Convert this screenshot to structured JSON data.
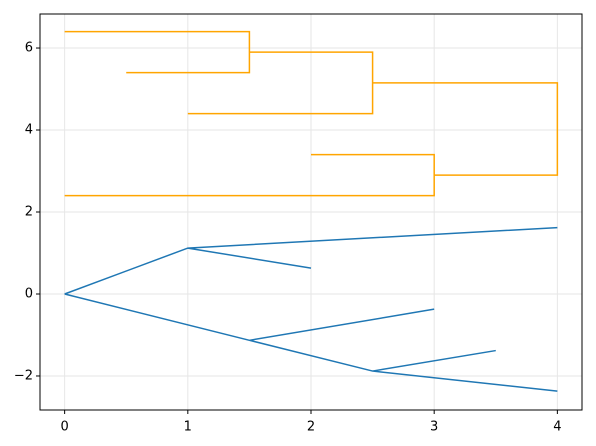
{
  "chart_data": {
    "type": "line",
    "xlim": [
      -0.2,
      4.2
    ],
    "ylim": [
      -2.83,
      6.83
    ],
    "xticks": [
      0,
      1,
      2,
      3,
      4
    ],
    "yticks": [
      {
        "value": -2,
        "label": "−2"
      },
      0,
      2,
      4,
      6
    ],
    "grid": true,
    "series": [
      {
        "color": "#ffa500",
        "x": [
          0,
          1.5,
          1.5,
          0.5,
          null,
          1.5,
          2.5,
          2.5,
          1,
          null,
          2.5,
          4,
          4,
          3,
          null,
          2,
          3,
          3,
          0
        ],
        "values": [
          6.4,
          6.4,
          5.4,
          5.4,
          null,
          5.9,
          5.9,
          4.4,
          4.4,
          null,
          5.15,
          5.15,
          2.9,
          2.9,
          null,
          3.4,
          3.4,
          2.4,
          2.4
        ]
      },
      {
        "color": "#1f77b4",
        "x": [
          0,
          1,
          4,
          null,
          1,
          2,
          null,
          0,
          1.5,
          2.5,
          4,
          null,
          1.5,
          3,
          null,
          2.5,
          3.5
        ],
        "values": [
          0,
          1.12,
          1.62,
          null,
          1.12,
          0.63,
          null,
          0,
          -1.13,
          -1.88,
          -2.37,
          null,
          -1.13,
          -0.37,
          null,
          -1.88,
          -1.38
        ]
      }
    ]
  }
}
